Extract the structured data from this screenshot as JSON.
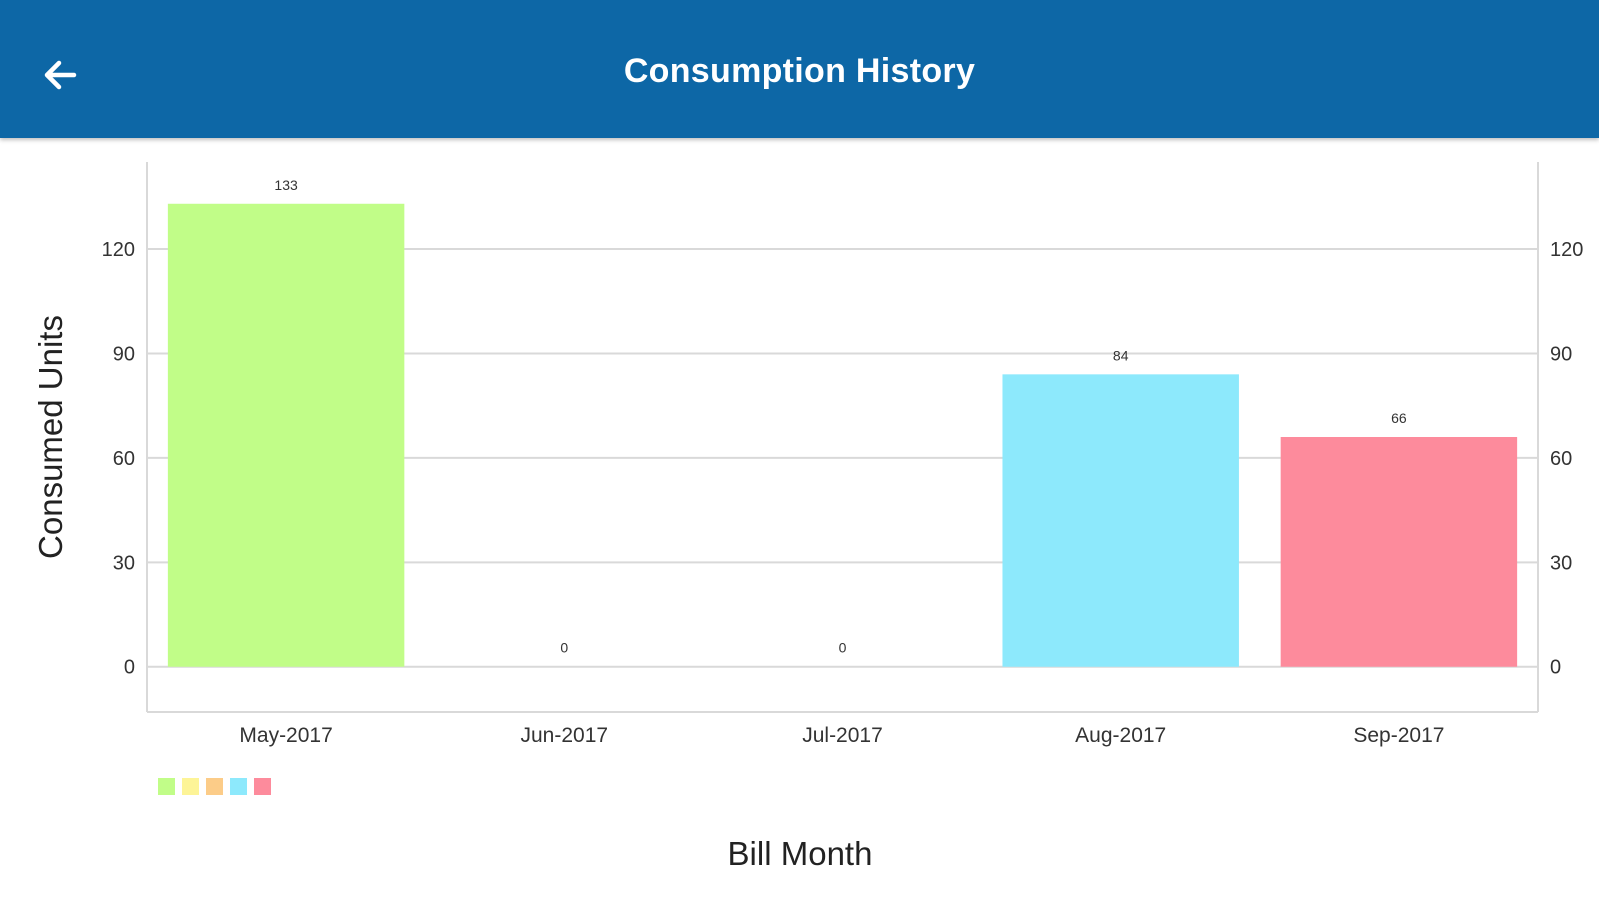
{
  "header": {
    "title": "Consumption History",
    "back_icon": "arrow-left-icon"
  },
  "colors": {
    "header_bg": "#0d67a6",
    "grid": "#d9d9d9"
  },
  "chart_data": {
    "type": "bar",
    "categories": [
      "May-2017",
      "Jun-2017",
      "Jul-2017",
      "Aug-2017",
      "Sep-2017"
    ],
    "values": [
      133,
      0,
      0,
      84,
      66
    ],
    "data_labels": [
      "133",
      "0",
      "0",
      "84",
      "66"
    ],
    "bar_colors": [
      "#c1fd88",
      "#fdf497",
      "#fccc88",
      "#8de9fc",
      "#fd8b9c"
    ],
    "xlabel": "Bill Month",
    "ylabel": "Consumed Units",
    "yticks": [
      0,
      30,
      60,
      90,
      120
    ],
    "ytick_labels": [
      "0",
      "30",
      "60",
      "90",
      "120"
    ],
    "ylim": [
      -13,
      145
    ],
    "right_axis": true,
    "grid": true,
    "legend_position": "bottom-left"
  }
}
